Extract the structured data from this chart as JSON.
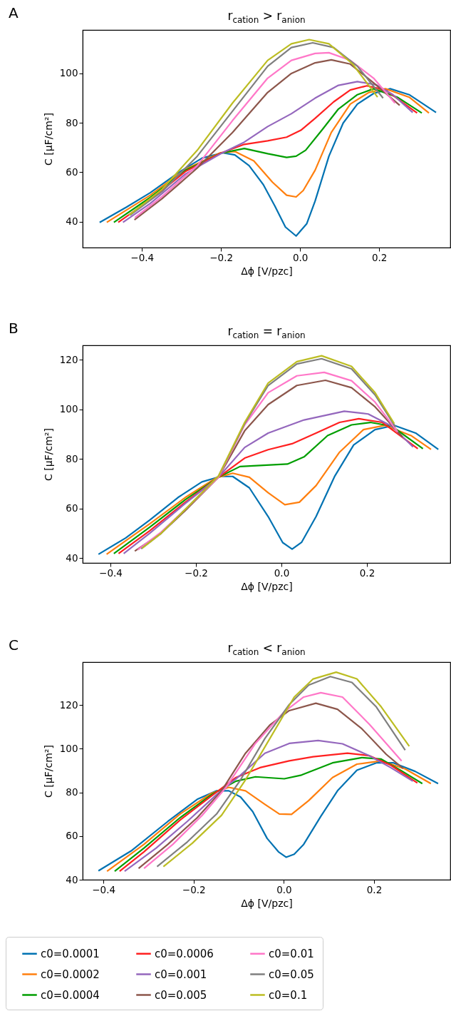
{
  "chart_data": [
    {
      "type": "line",
      "title": "r$_{cation}$ > r$_{anion}$",
      "annotations": [
        "A"
      ],
      "xlabel": "Δϕ [V/pzc]",
      "ylabel": "C [μF/cm²]",
      "xlim": [
        -0.55,
        0.38
      ],
      "ylim": [
        29.5,
        117.6
      ],
      "xticks": [
        {
          "value": -0.4,
          "label": "−0.4"
        },
        {
          "value": -0.2,
          "label": "−0.2"
        },
        {
          "value": 0,
          "label": "0.0"
        },
        {
          "value": 0.2,
          "label": "0.2"
        }
      ],
      "yticks": [
        40,
        60,
        80,
        100
      ],
      "legend": false,
      "series": [
        {
          "color": "#0072b2",
          "x": [
            -0.507,
            -0.439,
            -0.379,
            -0.308,
            -0.248,
            -0.195,
            -0.165,
            -0.129,
            -0.093,
            -0.064,
            -0.037,
            -0.01,
            0.017,
            0.038,
            0.073,
            0.109,
            0.145,
            0.186,
            0.228,
            0.276,
            0.344
          ],
          "values": [
            39.7,
            45.9,
            51.7,
            59.8,
            65.7,
            67.9,
            67.0,
            62.7,
            55.0,
            46.4,
            37.8,
            34.2,
            39.2,
            48.3,
            66.5,
            79.9,
            87.6,
            91.9,
            93.8,
            91.4,
            84.2
          ]
        },
        {
          "color": "#ff7f0e",
          "x": [
            -0.489,
            -0.379,
            -0.29,
            -0.201,
            -0.165,
            -0.117,
            -0.07,
            -0.034,
            -0.01,
            0.008,
            0.038,
            0.079,
            0.127,
            0.174,
            0.216,
            0.276,
            0.326
          ],
          "values": [
            39.7,
            50.7,
            61.2,
            67.9,
            68.4,
            64.6,
            56.0,
            50.7,
            50.0,
            52.6,
            60.8,
            76.1,
            87.6,
            92.3,
            93.8,
            90.4,
            84.0
          ]
        },
        {
          "color": "#009e00",
          "x": [
            -0.471,
            -0.379,
            -0.29,
            -0.201,
            -0.141,
            -0.082,
            -0.034,
            -0.01,
            0.014,
            0.055,
            0.097,
            0.145,
            0.186,
            0.246,
            0.308
          ],
          "values": [
            39.7,
            49.8,
            60.8,
            67.7,
            69.6,
            67.5,
            66.0,
            66.5,
            68.9,
            77.0,
            85.6,
            91.4,
            93.8,
            90.4,
            84.0
          ]
        },
        {
          "color": "#ff2020",
          "x": [
            -0.46,
            -0.379,
            -0.29,
            -0.201,
            -0.141,
            -0.082,
            -0.034,
            0.002,
            0.038,
            0.085,
            0.127,
            0.169,
            0.216,
            0.296
          ],
          "values": [
            39.7,
            48.8,
            60.3,
            67.7,
            71.3,
            72.7,
            74.2,
            77.0,
            81.8,
            88.5,
            93.3,
            95.0,
            93.3,
            84.0
          ]
        },
        {
          "color": "#9467bd",
          "x": [
            -0.448,
            -0.379,
            -0.29,
            -0.201,
            -0.141,
            -0.082,
            -0.022,
            0.038,
            0.097,
            0.145,
            0.193,
            0.235,
            0.285
          ],
          "values": [
            39.7,
            47.4,
            59.3,
            67.5,
            72.2,
            78.5,
            83.7,
            90.0,
            95.2,
            96.7,
            95.4,
            91.4,
            84.2
          ]
        },
        {
          "color": "#8c564b",
          "x": [
            -0.419,
            -0.349,
            -0.26,
            -0.171,
            -0.082,
            -0.022,
            0.038,
            0.079,
            0.127,
            0.186,
            0.252
          ],
          "values": [
            40.7,
            49.3,
            61.7,
            76.1,
            92.3,
            100.0,
            104.3,
            105.5,
            103.8,
            96.2,
            87.1
          ]
        },
        {
          "color": "#ff77c8",
          "x": [
            -0.418,
            -0.349,
            -0.26,
            -0.171,
            -0.082,
            -0.022,
            0.038,
            0.073,
            0.127,
            0.186,
            0.24
          ],
          "values": [
            41.6,
            50.2,
            62.7,
            80.9,
            98.1,
            105.3,
            108.1,
            108.4,
            105.3,
            98.1,
            88.0
          ]
        },
        {
          "color": "#7f7f7f",
          "x": [
            -0.43,
            -0.349,
            -0.26,
            -0.171,
            -0.082,
            -0.022,
            0.032,
            0.085,
            0.145,
            0.21
          ],
          "values": [
            42.6,
            52.2,
            66.5,
            84.7,
            102.9,
            110.5,
            112.4,
            110.5,
            102.9,
            90.0
          ]
        },
        {
          "color": "#bcbd22",
          "x": [
            -0.433,
            -0.349,
            -0.26,
            -0.171,
            -0.082,
            -0.022,
            0.023,
            0.073,
            0.133,
            0.196
          ],
          "values": [
            42.6,
            53.1,
            68.9,
            88.0,
            105.3,
            112.0,
            113.7,
            112.0,
            103.8,
            90.4
          ]
        }
      ]
    },
    {
      "type": "line",
      "title": "r$_{cation}$ = r$_{anion}$",
      "annotations": [
        "B"
      ],
      "xlabel": "Δϕ [V/pzc]",
      "ylabel": "C [μF/cm²]",
      "xlim": [
        -0.465,
        0.395
      ],
      "ylim": [
        38.1,
        125.9
      ],
      "xticks": [
        {
          "value": -0.4,
          "label": "−0.4"
        },
        {
          "value": -0.2,
          "label": "−0.2"
        },
        {
          "value": 0,
          "label": "0.0"
        },
        {
          "value": 0.2,
          "label": "0.2"
        }
      ],
      "yticks": [
        40,
        60,
        80,
        100,
        120
      ],
      "legend": false,
      "series": [
        {
          "color": "#0072b2",
          "x": [
            -0.428,
            -0.364,
            -0.308,
            -0.242,
            -0.186,
            -0.142,
            -0.114,
            -0.075,
            -0.031,
            0.003,
            0.025,
            0.047,
            0.081,
            0.125,
            0.169,
            0.219,
            0.264,
            0.314,
            0.367
          ],
          "values": [
            41.6,
            48.2,
            55.4,
            64.5,
            70.8,
            73.0,
            73.0,
            68.4,
            56.8,
            46.3,
            43.7,
            46.4,
            56.8,
            73.2,
            85.7,
            91.9,
            93.6,
            90.5,
            83.9
          ]
        },
        {
          "color": "#ff7f0e",
          "x": [
            -0.409,
            -0.308,
            -0.225,
            -0.153,
            -0.114,
            -0.075,
            -0.031,
            0.008,
            0.042,
            0.081,
            0.136,
            0.192,
            0.242,
            0.303,
            0.35
          ],
          "values": [
            41.6,
            53.9,
            64.5,
            72.4,
            74.3,
            72.7,
            66.4,
            61.6,
            62.6,
            69.3,
            82.8,
            91.9,
            93.6,
            89.5,
            83.9
          ]
        },
        {
          "color": "#009e00",
          "x": [
            -0.392,
            -0.308,
            -0.225,
            -0.147,
            -0.097,
            -0.042,
            0.014,
            0.053,
            0.108,
            0.164,
            0.208,
            0.258,
            0.331
          ],
          "values": [
            41.9,
            52.5,
            63.6,
            72.7,
            77.0,
            77.5,
            78.0,
            80.9,
            89.5,
            93.8,
            94.8,
            93.3,
            84.2
          ]
        },
        {
          "color": "#ff2020",
          "x": [
            -0.381,
            -0.308,
            -0.225,
            -0.147,
            -0.086,
            -0.031,
            0.025,
            0.081,
            0.136,
            0.181,
            0.236,
            0.319
          ],
          "values": [
            41.9,
            51.1,
            62.6,
            72.7,
            80.4,
            83.8,
            86.2,
            90.5,
            94.8,
            96.3,
            94.8,
            84.2
          ]
        },
        {
          "color": "#9467bd",
          "x": [
            -0.369,
            -0.308,
            -0.225,
            -0.147,
            -0.086,
            -0.031,
            0.053,
            0.147,
            0.203,
            0.258,
            0.308
          ],
          "values": [
            41.9,
            50.1,
            62.1,
            72.7,
            84.7,
            90.5,
            95.8,
            99.3,
            98.2,
            93.3,
            84.9
          ]
        },
        {
          "color": "#8c564b",
          "x": [
            -0.343,
            -0.281,
            -0.225,
            -0.147,
            -0.086,
            -0.031,
            0.036,
            0.103,
            0.164,
            0.219,
            0.283
          ],
          "values": [
            42.9,
            50.1,
            59.2,
            72.7,
            91.4,
            102.0,
            109.7,
            111.8,
            108.8,
            101.1,
            89.0
          ]
        },
        {
          "color": "#ff77c8",
          "x": [
            -0.336,
            -0.281,
            -0.225,
            -0.147,
            -0.086,
            -0.031,
            0.036,
            0.1,
            0.164,
            0.219,
            0.272
          ],
          "values": [
            43.4,
            50.6,
            59.7,
            72.7,
            93.8,
            106.8,
            113.6,
            115.0,
            111.6,
            103.0,
            91.0
          ]
        },
        {
          "color": "#7f7f7f",
          "x": [
            -0.328,
            -0.281,
            -0.225,
            -0.147,
            -0.086,
            -0.031,
            0.036,
            0.094,
            0.164,
            0.219,
            0.267
          ],
          "values": [
            43.8,
            50.1,
            59.7,
            73.2,
            94.3,
            109.7,
            118.4,
            120.5,
            116.4,
            105.9,
            92.9
          ]
        },
        {
          "color": "#bcbd22",
          "x": [
            -0.326,
            -0.281,
            -0.225,
            -0.147,
            -0.086,
            -0.031,
            0.036,
            0.094,
            0.164,
            0.219,
            0.264
          ],
          "values": [
            44.0,
            50.1,
            59.7,
            73.2,
            94.8,
            110.7,
            119.3,
            121.7,
            117.4,
            106.8,
            94.3
          ]
        }
      ]
    },
    {
      "type": "line",
      "title": "r$_{cation}$ < r$_{anion}$",
      "annotations": [
        "C"
      ],
      "xlabel": "Δϕ [V/pzc]",
      "ylabel": "C [μF/cm²]",
      "xlim": [
        -0.446,
        0.369
      ],
      "ylim": [
        40,
        139.6
      ],
      "xticks": [
        {
          "value": -0.4,
          "label": "−0.4"
        },
        {
          "value": -0.2,
          "label": "−0.2"
        },
        {
          "value": 0,
          "label": "0.0"
        },
        {
          "value": 0.2,
          "label": "0.2"
        }
      ],
      "yticks": [
        40,
        60,
        80,
        100,
        120
      ],
      "legend": "bottom",
      "series": [
        {
          "name": "c0=0.0001",
          "color": "#0072b2",
          "x": [
            -0.411,
            -0.337,
            -0.257,
            -0.192,
            -0.149,
            -0.122,
            -0.096,
            -0.069,
            -0.037,
            -0.012,
            0.005,
            0.023,
            0.044,
            0.082,
            0.119,
            0.162,
            0.205,
            0.243,
            0.291,
            0.342
          ],
          "values": [
            44.1,
            53.4,
            66.7,
            76.8,
            80.7,
            80.7,
            77.9,
            71.2,
            58.9,
            52.8,
            50.3,
            51.7,
            56.2,
            69.0,
            80.7,
            90.1,
            93.5,
            93.5,
            89.6,
            84.0
          ]
        },
        {
          "name": "c0=0.0002",
          "color": "#ff7f0e",
          "x": [
            -0.392,
            -0.31,
            -0.23,
            -0.16,
            -0.122,
            -0.085,
            -0.042,
            -0.01,
            0.017,
            0.055,
            0.108,
            0.162,
            0.216,
            0.269,
            0.326
          ],
          "values": [
            43.9,
            56.2,
            70.1,
            79.6,
            82.3,
            80.7,
            74.5,
            70.1,
            69.9,
            76.2,
            86.8,
            92.9,
            94.4,
            90.7,
            84.0
          ]
        },
        {
          "name": "c0=0.0004",
          "color": "#009e00",
          "x": [
            -0.375,
            -0.31,
            -0.23,
            -0.16,
            -0.106,
            -0.063,
            0.001,
            0.039,
            0.108,
            0.173,
            0.216,
            0.259,
            0.307
          ],
          "values": [
            43.9,
            54.5,
            68.4,
            79.0,
            85.1,
            87.1,
            86.2,
            87.9,
            93.5,
            95.9,
            95.2,
            90.1,
            84.0
          ]
        },
        {
          "name": "c0=0.0006",
          "color": "#ff2020",
          "x": [
            -0.364,
            -0.31,
            -0.23,
            -0.16,
            -0.106,
            -0.053,
            0.012,
            0.065,
            0.141,
            0.189,
            0.237,
            0.296
          ],
          "values": [
            43.9,
            52.8,
            67.3,
            78.4,
            86.8,
            91.3,
            94.4,
            96.3,
            97.9,
            96.8,
            92.4,
            84.3
          ]
        },
        {
          "name": "c0=0.001",
          "color": "#9467bd",
          "x": [
            -0.353,
            -0.283,
            -0.214,
            -0.149,
            -0.096,
            -0.042,
            0.012,
            0.076,
            0.13,
            0.189,
            0.237,
            0.286
          ],
          "values": [
            43.9,
            54.5,
            66.7,
            79.0,
            87.9,
            97.9,
            102.4,
            103.7,
            102.2,
            96.8,
            91.3,
            85.1
          ]
        },
        {
          "name": "c0=0.005",
          "color": "#8c564b",
          "x": [
            -0.322,
            -0.257,
            -0.192,
            -0.138,
            -0.085,
            -0.031,
            0.012,
            0.071,
            0.119,
            0.173,
            0.227,
            0.264
          ],
          "values": [
            45.2,
            56.2,
            68.4,
            80.7,
            97.9,
            110.8,
            117.4,
            120.8,
            118.0,
            109.1,
            97.4,
            91.0
          ]
        },
        {
          "name": "c0=0.01",
          "color": "#ff77c8",
          "x": [
            -0.31,
            -0.246,
            -0.181,
            -0.128,
            -0.063,
            0.001,
            0.044,
            0.082,
            0.13,
            0.189,
            0.261
          ],
          "values": [
            45.2,
            56.2,
            69.5,
            82.3,
            102.4,
            116.9,
            123.6,
            125.6,
            123.6,
            111.3,
            94.4
          ]
        },
        {
          "name": "c0=0.05",
          "color": "#7f7f7f",
          "x": [
            -0.281,
            -0.214,
            -0.149,
            -0.096,
            -0.042,
            0.012,
            0.055,
            0.103,
            0.151,
            0.205,
            0.269
          ],
          "values": [
            46.0,
            57.3,
            70.1,
            85.7,
            104.6,
            120.2,
            129.1,
            133.0,
            130.3,
            119.1,
            99.3
          ]
        },
        {
          "name": "c0=0.1",
          "color": "#bcbd22",
          "x": [
            -0.267,
            -0.203,
            -0.138,
            -0.085,
            -0.031,
            0.023,
            0.065,
            0.116,
            0.162,
            0.216,
            0.278
          ],
          "values": [
            46.0,
            56.7,
            69.5,
            85.7,
            104.6,
            123.6,
            131.9,
            135.0,
            131.9,
            119.1,
            101.1
          ]
        }
      ]
    }
  ]
}
